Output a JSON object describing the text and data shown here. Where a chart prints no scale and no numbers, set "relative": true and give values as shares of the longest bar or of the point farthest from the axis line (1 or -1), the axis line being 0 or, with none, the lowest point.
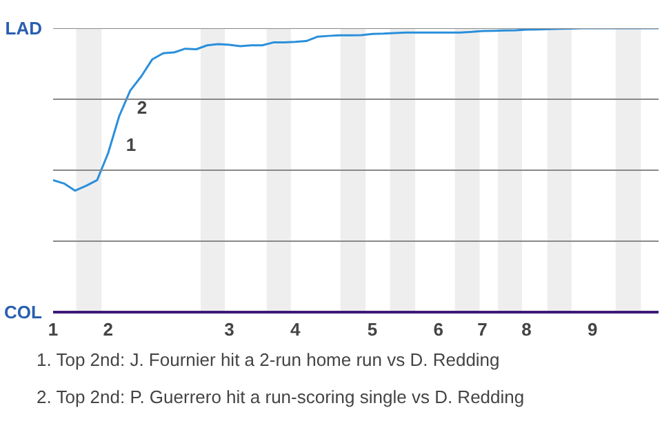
{
  "chart_data": {
    "type": "line",
    "relative": true,
    "categories": [
      "1",
      null,
      null,
      null,
      null,
      "2",
      null,
      null,
      null,
      null,
      null,
      null,
      null,
      null,
      null,
      null,
      "3",
      null,
      null,
      null,
      null,
      null,
      "4",
      null,
      null,
      null,
      null,
      null,
      null,
      "5",
      null,
      null,
      null,
      null,
      null,
      "6",
      null,
      null,
      null,
      "7",
      null,
      null,
      null,
      "8",
      null,
      null,
      null,
      null,
      null,
      "9",
      null,
      null,
      null,
      null,
      null,
      null
    ],
    "series": [
      {
        "color": "#2a8fdb",
        "values": [
          0.465,
          0.453,
          0.428,
          0.445,
          0.465,
          0.56,
          0.69,
          0.78,
          0.83,
          0.89,
          0.912,
          0.915,
          0.928,
          0.926,
          0.94,
          0.944,
          0.942,
          0.937,
          0.94,
          0.94,
          0.95,
          0.95,
          0.952,
          0.955,
          0.97,
          0.973,
          0.975,
          0.975,
          0.976,
          0.98,
          0.981,
          0.983,
          0.985,
          0.985,
          0.985,
          0.985,
          0.985,
          0.985,
          0.987,
          0.99,
          0.991,
          0.992,
          0.993,
          0.995,
          0.996,
          0.997,
          0.998,
          0.999,
          1,
          1,
          1,
          1,
          1,
          1,
          1,
          1
        ]
      }
    ],
    "ref_lines": [
      {
        "axis": "y",
        "value": 0.25,
        "color": "#888888"
      },
      {
        "axis": "y",
        "value": 0.5,
        "color": "#888888"
      },
      {
        "axis": "y",
        "value": 0.75,
        "color": "#888888"
      },
      {
        "axis": "y",
        "value": 1,
        "color": "#888888"
      }
    ],
    "annotations": [
      "LAD",
      "COL",
      "1",
      "2",
      "1. Top 2nd: J. Fournier hit a 2-run home run vs D. Redding",
      "2. Top 2nd: P. Guerrero hit a run-scoring single vs D. Redding"
    ],
    "grid": false,
    "marker": "none",
    "line_style": "solid"
  }
}
